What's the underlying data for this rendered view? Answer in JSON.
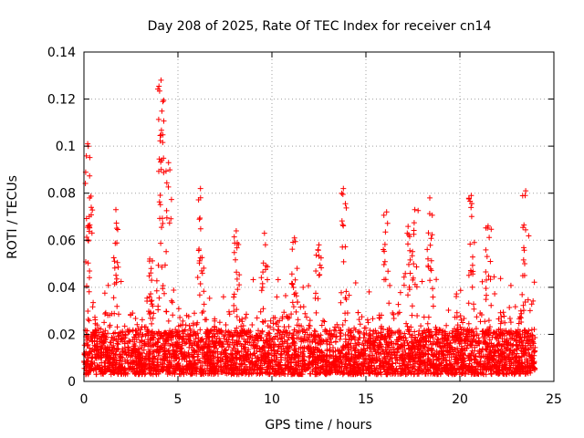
{
  "chart_data": {
    "type": "scatter",
    "title": "Day 208 of 2025, Rate Of TEC Index for receiver cn14",
    "xlabel": "GPS time / hours",
    "ylabel": "ROTI / TECUs",
    "xlim": [
      0,
      25
    ],
    "ylim": [
      0,
      0.14
    ],
    "x_ticks": [
      0,
      5,
      10,
      15,
      20,
      25
    ],
    "x_tick_labels": [
      "0",
      "5",
      "10",
      "15",
      "20",
      "25"
    ],
    "y_ticks": [
      0,
      0.02,
      0.04,
      0.06,
      0.08,
      0.1,
      0.12,
      0.14
    ],
    "y_tick_labels": [
      "0",
      "0.02",
      "0.04",
      "0.06",
      "0.08",
      "0.1",
      "0.12",
      "0.14"
    ],
    "grid": true,
    "marker": "+",
    "series_color": "#ff0000",
    "x_range_of_data": [
      0,
      24
    ],
    "typical_baseline": 0.012,
    "peaks": [
      {
        "x": 0.2,
        "y": 0.101
      },
      {
        "x": 0.3,
        "y": 0.078
      },
      {
        "x": 1.7,
        "y": 0.073
      },
      {
        "x": 3.5,
        "y": 0.052
      },
      {
        "x": 4.1,
        "y": 0.128
      },
      {
        "x": 4.2,
        "y": 0.119
      },
      {
        "x": 4.5,
        "y": 0.093
      },
      {
        "x": 6.2,
        "y": 0.082
      },
      {
        "x": 8.1,
        "y": 0.064
      },
      {
        "x": 9.6,
        "y": 0.063
      },
      {
        "x": 11.2,
        "y": 0.061
      },
      {
        "x": 12.5,
        "y": 0.058
      },
      {
        "x": 13.8,
        "y": 0.082
      },
      {
        "x": 16.1,
        "y": 0.072
      },
      {
        "x": 17.2,
        "y": 0.063
      },
      {
        "x": 17.6,
        "y": 0.073
      },
      {
        "x": 18.4,
        "y": 0.078
      },
      {
        "x": 20.6,
        "y": 0.079
      },
      {
        "x": 21.5,
        "y": 0.066
      },
      {
        "x": 23.5,
        "y": 0.081
      }
    ]
  }
}
